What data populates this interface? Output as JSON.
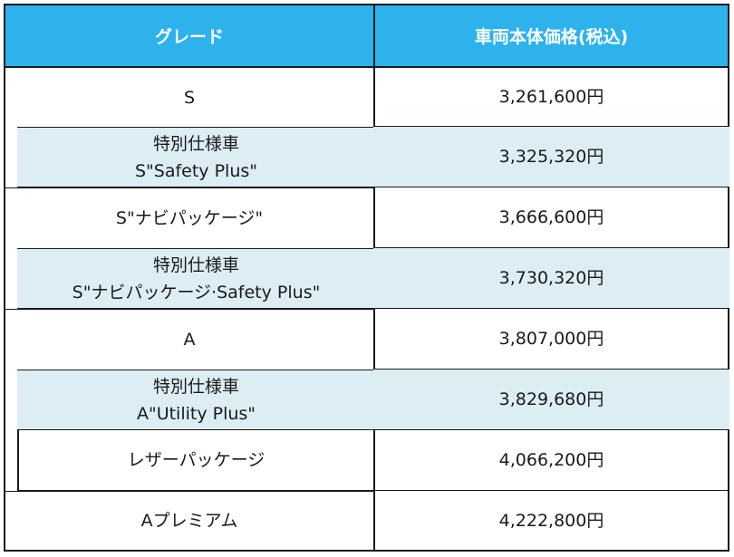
{
  "table": {
    "headers": {
      "grade": "グレード",
      "price": "車両本体価格(税込)"
    },
    "rows": [
      {
        "grade_line1": "S",
        "grade_line2": "",
        "price": "3,261,600円"
      },
      {
        "grade_line1": "特別仕様車",
        "grade_line2": "S\"Safety Plus\"",
        "price": "3,325,320円"
      },
      {
        "grade_line1": "S\"ナビパッケージ\"",
        "grade_line2": "",
        "price": "3,666,600円"
      },
      {
        "grade_line1": "特別仕様車",
        "grade_line2": "S\"ナビパッケージ·Safety Plus\"",
        "price": "3,730,320円"
      },
      {
        "grade_line1": "A",
        "grade_line2": "",
        "price": "3,807,000円"
      },
      {
        "grade_line1": "特別仕様車",
        "grade_line2": "A\"Utility Plus\"",
        "price": "3,829,680円"
      },
      {
        "grade_line1": "レザーパッケージ",
        "grade_line2": "",
        "price": "4,066,200円"
      },
      {
        "grade_line1": "Aプレミアム",
        "grade_line2": "",
        "price": "4,222,800円"
      }
    ]
  },
  "colors": {
    "header_bg": "#2db2ec",
    "special_row_bg": "#dcedf4",
    "border": "#1a1a1a"
  }
}
